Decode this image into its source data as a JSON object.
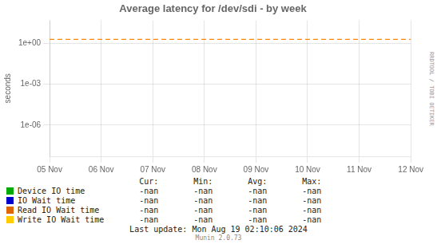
{
  "chart_data": {
    "type": "line",
    "title": "Average latency for /dev/sdi - by week",
    "y_label": "seconds",
    "categories": [
      "05 Nov",
      "06 Nov",
      "07 Nov",
      "08 Nov",
      "09 Nov",
      "10 Nov",
      "11 Nov",
      "12 Nov"
    ],
    "series": [
      {
        "name": "Device IO time",
        "color": "#00aa00",
        "values": [
          null,
          null,
          null,
          null,
          null,
          null,
          null,
          null
        ],
        "summary": [
          "-nan",
          "-nan",
          "-nan",
          "-nan"
        ]
      },
      {
        "name": "IO Wait time",
        "color": "#0000cc",
        "values": [
          null,
          null,
          null,
          null,
          null,
          null,
          null,
          null
        ],
        "summary": [
          "-nan",
          "-nan",
          "-nan",
          "-nan"
        ]
      },
      {
        "name": "Read IO Wait time",
        "color": "#dd6600",
        "values": [
          null,
          null,
          null,
          null,
          null,
          null,
          null,
          null
        ],
        "summary": [
          "-nan",
          "-nan",
          "-nan",
          "-nan"
        ]
      },
      {
        "name": "Write IO Wait time",
        "color": "#ffcc00",
        "values": [
          null,
          null,
          null,
          null,
          null,
          null,
          null,
          null
        ],
        "summary": [
          "-nan",
          "-nan",
          "-nan",
          "-nan"
        ]
      }
    ],
    "summary_columns": [
      "Cur:",
      "Min:",
      "Avg:",
      "Max:"
    ],
    "log": "y",
    "ylim": [
      5e-09,
      50
    ],
    "yticks": [
      {
        "value": 1e-06,
        "label": "1e-06"
      },
      {
        "value": 0.001,
        "label": "1e-03"
      },
      {
        "value": 1,
        "label": "1e+00"
      }
    ],
    "grid": true,
    "reference_line": {
      "y": 2.0,
      "color": "#ff8800",
      "line_style": "dashed"
    },
    "annotations": [
      "Last update: Mon Aug 19 02:10:06 2024",
      "Munin 2.0.73",
      "RRDTOOL / TOBI OETIKER"
    ]
  }
}
